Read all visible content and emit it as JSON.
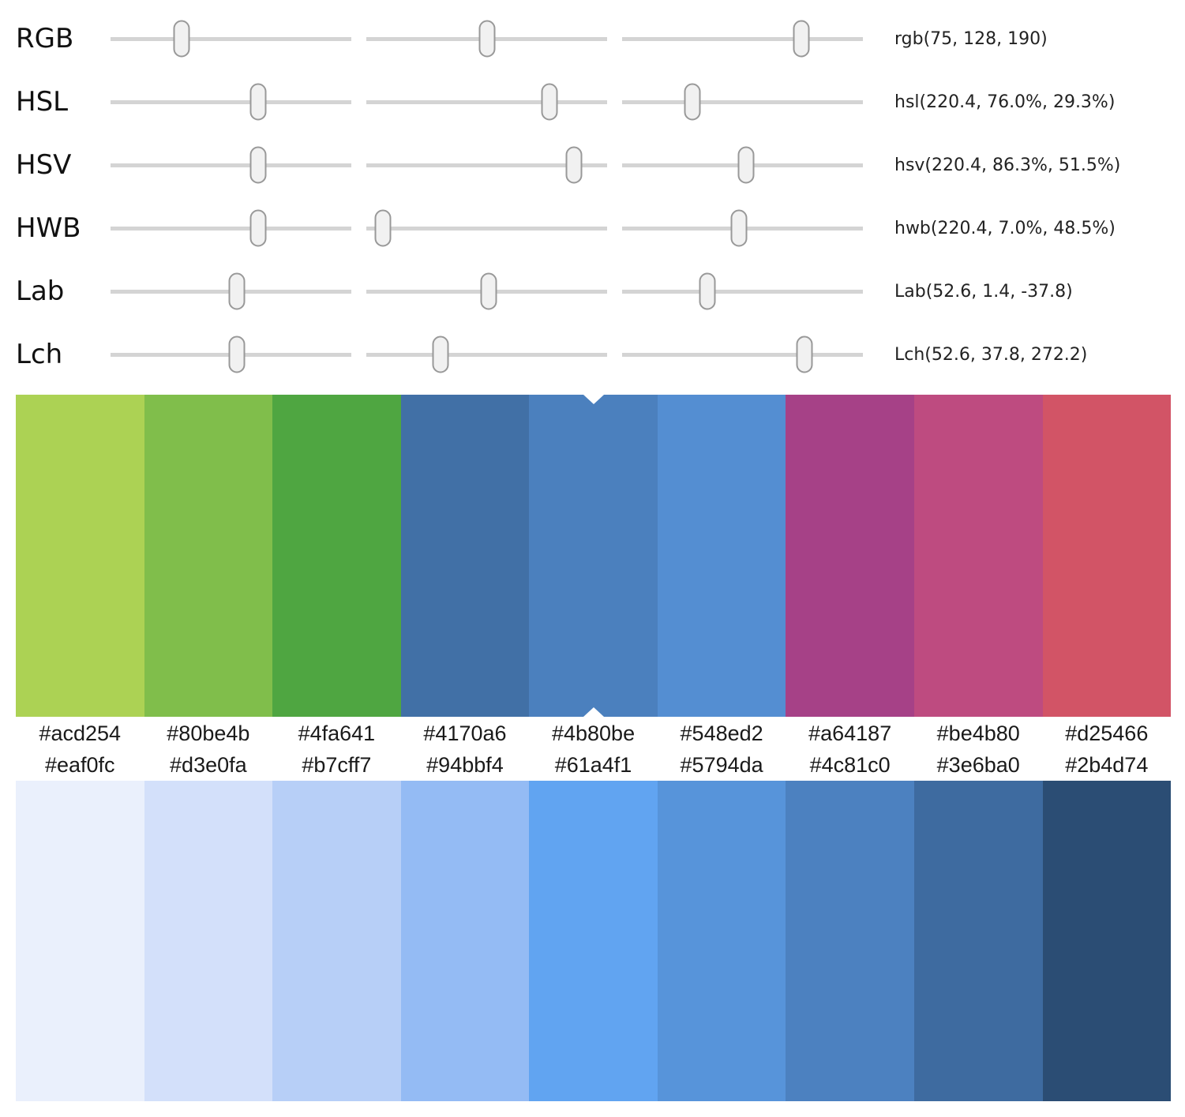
{
  "ui": {
    "track_color": "#d4d4d4",
    "handle_fill": "#f1f1f1",
    "handle_border": "#999999",
    "background": "#ffffff",
    "selected_marker_color": "#ffffff"
  },
  "current_color": "#4b80be",
  "sliders": {
    "rows": [
      {
        "label": "RGB",
        "value_label": "rgb(75, 128, 190)",
        "handle_positions_pct": [
          29.4,
          50.2,
          74.5
        ]
      },
      {
        "label": "HSL",
        "value_label": "hsl(220.4, 76.0%, 29.3%)",
        "handle_positions_pct": [
          61.2,
          76.0,
          29.3
        ]
      },
      {
        "label": "HSV",
        "value_label": "hsv(220.4, 86.3%, 51.5%)",
        "handle_positions_pct": [
          61.2,
          86.3,
          51.5
        ]
      },
      {
        "label": "HWB",
        "value_label": "hwb(220.4, 7.0%, 48.5%)",
        "handle_positions_pct": [
          61.2,
          7.0,
          48.5
        ]
      },
      {
        "label": "Lab",
        "value_label": "Lab(52.6, 1.4, -37.8)",
        "handle_positions_pct": [
          52.6,
          50.7,
          35.4
        ]
      },
      {
        "label": "Lch",
        "value_label": "Lch(52.6, 37.8, 272.2)",
        "handle_positions_pct": [
          52.6,
          30.9,
          75.6
        ]
      }
    ]
  },
  "palettes": {
    "top": {
      "labels_position": "below",
      "selected_index": 4,
      "swatches": [
        "#acd254",
        "#80be4b",
        "#4fa641",
        "#4170a6",
        "#4b80be",
        "#548ed2",
        "#a64187",
        "#be4b80",
        "#d25466"
      ]
    },
    "bottom": {
      "labels_position": "above",
      "selected_index": null,
      "swatches": [
        "#eaf0fc",
        "#d3e0fa",
        "#b7cff7",
        "#94bbf4",
        "#61a4f1",
        "#5794da",
        "#4c81c0",
        "#3e6ba0",
        "#2b4d74"
      ]
    }
  }
}
